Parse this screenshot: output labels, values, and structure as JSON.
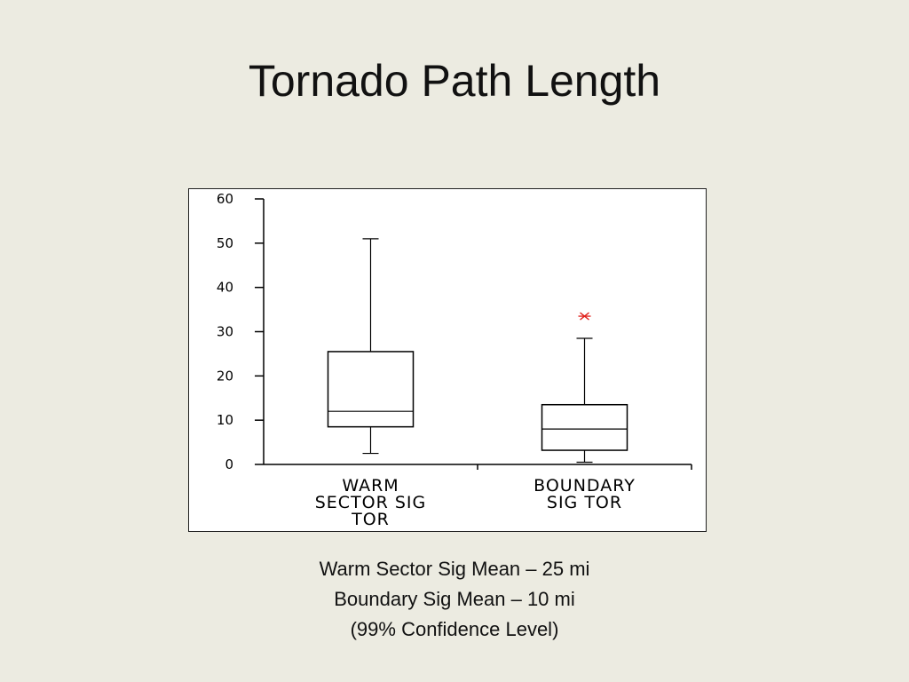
{
  "slide": {
    "title": "Tornado Path Length",
    "notes": [
      "Warm Sector Sig Mean – 25 mi",
      "Boundary Sig Mean – 10 mi",
      "(99% Confidence Level)"
    ]
  },
  "chart_data": {
    "type": "box",
    "title": "",
    "xlabel": "",
    "ylabel": "",
    "ylim": [
      0,
      60
    ],
    "yticks": [
      0,
      10,
      20,
      30,
      40,
      50,
      60
    ],
    "grid": false,
    "categories": [
      [
        "WARM",
        "SECTOR SIG",
        "TOR"
      ],
      [
        "BOUNDARY",
        "SIG TOR"
      ]
    ],
    "boxes": [
      {
        "whisker_low": 2.5,
        "q1": 8.5,
        "median": 12,
        "q3": 25.5,
        "whisker_high": 51,
        "outliers": []
      },
      {
        "whisker_low": 0.5,
        "q1": 3.2,
        "median": 8,
        "q3": 13.5,
        "whisker_high": 28.5,
        "outliers": [
          33.5
        ]
      }
    ],
    "colors": {
      "axis": "#000000",
      "box": "#000000",
      "outlier": "#e0201b"
    }
  }
}
